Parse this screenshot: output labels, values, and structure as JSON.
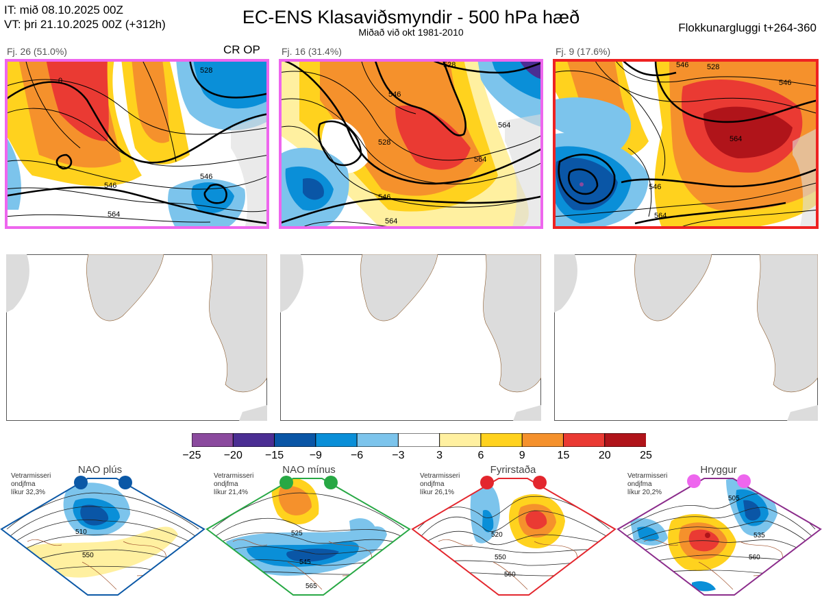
{
  "header": {
    "it_line": "IT: mið 08.10.2025 00Z",
    "vt_line": "VT: þri 21.10.2025 00Z  (+312h)",
    "title": "EC-ENS Klasaviðsmyndir - 500 hPa hæð",
    "subtitle": "Miðað við okt 1981-2010",
    "window": "Flokkunargluggi t+264-360"
  },
  "clusters": [
    {
      "label": "Fj. 26 (51.0%)",
      "tag": "CR OP",
      "frame_color": "#ee66ee",
      "contours": [
        "546",
        "564",
        "546",
        "528",
        "0"
      ]
    },
    {
      "label": "Fj. 16 (31.4%)",
      "tag": "",
      "frame_color": "#ee66ee",
      "contours": [
        "528",
        "546",
        "528",
        "564",
        "546",
        "564",
        "564"
      ]
    },
    {
      "label": "Fj. 9 (17.6%)",
      "tag": "",
      "frame_color": "#ee2222",
      "contours": [
        "546",
        "528",
        "546",
        "546",
        "564",
        "564"
      ]
    }
  ],
  "colorbar": {
    "ticks": [
      "−25",
      "−20",
      "−15",
      "−9",
      "−6",
      "−3",
      "3",
      "6",
      "9",
      "15",
      "20",
      "25"
    ],
    "colors": [
      "#8b4a9e",
      "#4b2e93",
      "#0a56a6",
      "#0a8fd8",
      "#7cc4ec",
      "#ffffff",
      "#fff0a0",
      "#ffd21e",
      "#f5912c",
      "#ea3a33",
      "#b0141a"
    ]
  },
  "regimes": [
    {
      "name": "NAO plús",
      "note": [
        "Vetrarmisseri",
        "ondjfma",
        "líkur 32,3%"
      ],
      "color": "#0b58a6",
      "labels": [
        "510",
        "550"
      ]
    },
    {
      "name": "NAO mínus",
      "note": [
        "Vetrarmisseri",
        "ondjfma",
        "líkur 21,4%"
      ],
      "color": "#27a844",
      "labels": [
        "525",
        "545",
        "565"
      ]
    },
    {
      "name": "Fyrirstaða",
      "note": [
        "Vetrarmisseri",
        "ondjfma",
        "líkur 26,1%"
      ],
      "color": "#e3262d",
      "labels": [
        "520",
        "550",
        "560"
      ]
    },
    {
      "name": "Hryggur",
      "note": [
        "Vetrarmisseri",
        "ondjfma",
        "líkur 20,2%"
      ],
      "color": "#ee66ee",
      "labels": [
        "505",
        "535",
        "560"
      ]
    }
  ]
}
